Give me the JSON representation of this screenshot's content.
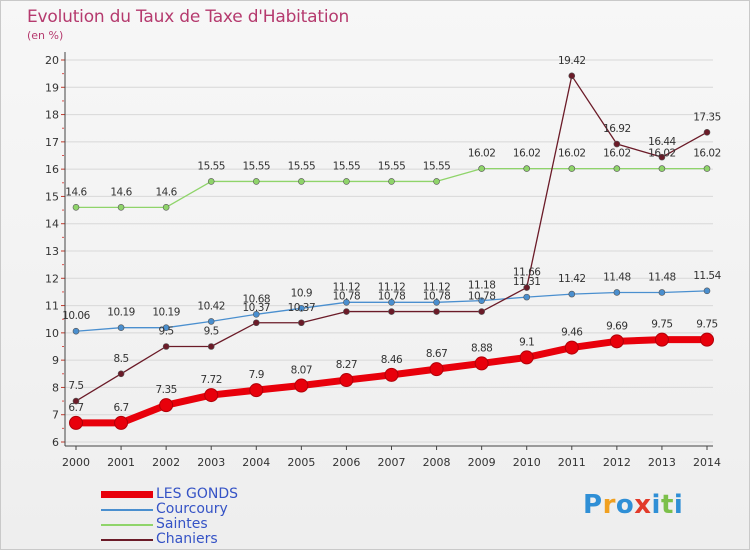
{
  "title": "Evolution du Taux de Taxe d'Habitation",
  "unit": "(en %)",
  "logo": {
    "text": "Proxiti",
    "letters": [
      {
        "ch": "P",
        "color": "#2f8fd6"
      },
      {
        "ch": "r",
        "color": "#f0a020"
      },
      {
        "ch": "o",
        "color": "#2f8fd6"
      },
      {
        "ch": "x",
        "color": "#e23a2a"
      },
      {
        "ch": "i",
        "color": "#2f8fd6"
      },
      {
        "ch": "t",
        "color": "#7cc04a"
      },
      {
        "ch": "i",
        "color": "#2f8fd6"
      }
    ]
  },
  "chart_data": {
    "type": "line",
    "title": "Evolution du Taux de Taxe d'Habitation",
    "ylabel": "(en %)",
    "xlabel": "",
    "ylim": [
      6,
      20
    ],
    "yticks": [
      "6",
      "7",
      "8",
      "9",
      "10",
      "11",
      "12",
      "13",
      "14",
      "15",
      "16",
      "17",
      "18",
      "19",
      "20"
    ],
    "x": [
      "2000",
      "2001",
      "2002",
      "2003",
      "2004",
      "2005",
      "2006",
      "2007",
      "2008",
      "2009",
      "2010",
      "2011",
      "2012",
      "2013",
      "2014"
    ],
    "grid": "horizontal",
    "legend_position": "bottom-left",
    "series": [
      {
        "name": "LES GONDS",
        "color": "#e8000b",
        "values": [
          6.7,
          6.7,
          7.35,
          7.72,
          7.9,
          8.07,
          8.27,
          8.46,
          8.67,
          8.88,
          9.1,
          9.46,
          9.69,
          9.75,
          9.75
        ],
        "labels": [
          "6.7",
          "6.7",
          "7.35",
          "7.72",
          "7.9",
          "8.07",
          "8.27",
          "8.46",
          "8.67",
          "8.88",
          "9.1",
          "9.46",
          "9.69",
          "9.75",
          "9.75"
        ]
      },
      {
        "name": "Courcoury",
        "color": "#4a8fcf",
        "values": [
          10.06,
          10.19,
          10.19,
          10.42,
          10.68,
          10.9,
          11.12,
          11.12,
          11.12,
          11.18,
          11.31,
          11.42,
          11.48,
          11.48,
          11.54
        ],
        "labels": [
          "10.06",
          "10.19",
          "10.19",
          "10.42",
          "10.68",
          "10.9",
          "11.12",
          "11.12",
          "11.12",
          "11.18",
          "11.31",
          "11.42",
          "11.48",
          "11.48",
          "11.54"
        ]
      },
      {
        "name": "Saintes",
        "color": "#8fd46a",
        "values": [
          14.6,
          14.6,
          14.6,
          15.55,
          15.55,
          15.55,
          15.55,
          15.55,
          15.55,
          16.02,
          16.02,
          16.02,
          16.02,
          16.02,
          16.02
        ],
        "labels": [
          "14.6",
          "14.6",
          "14.6",
          "15.55",
          "15.55",
          "15.55",
          "15.55",
          "15.55",
          "15.55",
          "16.02",
          "16.02",
          "16.02",
          "16.02",
          "16.02",
          "16.02"
        ]
      },
      {
        "name": "Chaniers",
        "color": "#6b1b28",
        "values": [
          7.5,
          8.5,
          9.5,
          9.5,
          10.37,
          10.37,
          10.78,
          10.78,
          10.78,
          10.78,
          11.66,
          19.42,
          16.92,
          16.44,
          17.35
        ],
        "labels": [
          "7.5",
          "8.5",
          "9.5",
          "9.5",
          "10.37",
          "10.37",
          "10.78",
          "10.78",
          "10.78",
          "10.78",
          "11.66",
          "19.42",
          "16.92",
          "16.44",
          "17.35"
        ]
      }
    ]
  }
}
